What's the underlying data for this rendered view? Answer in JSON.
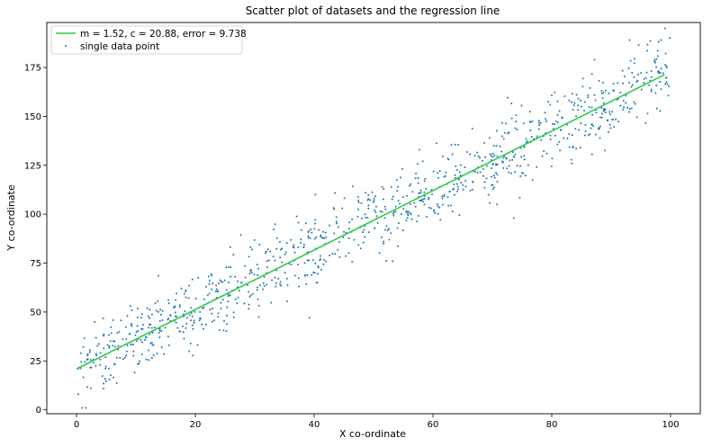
{
  "chart_data": {
    "type": "scatter",
    "title": "Scatter plot of datasets and the regression line",
    "xlabel": "X co-ordinate",
    "ylabel": "Y co-ordinate",
    "xlim": [
      -5,
      105
    ],
    "ylim": [
      -2,
      198
    ],
    "xticks": [
      0,
      20,
      40,
      60,
      80,
      100
    ],
    "yticks": [
      0,
      25,
      50,
      75,
      100,
      125,
      150,
      175
    ],
    "grid": false,
    "legend_position": "top-left",
    "colors": {
      "points": "#1f77b4",
      "line": "#2ecc40"
    },
    "series": [
      {
        "name": "m = 1.52, c = 20.88, error = 9.738",
        "kind": "line",
        "slope": 1.52,
        "intercept": 20.88,
        "x_range": [
          0,
          99
        ]
      },
      {
        "name": "single data point",
        "kind": "scatter",
        "trend_slope": 1.52,
        "trend_intercept": 20.88,
        "x_range": [
          0,
          100
        ],
        "count": 1000,
        "noise_sd": 9.738,
        "highlighted_points": [
          {
            "x": 0.3,
            "y": 8
          },
          {
            "x": 2.4,
            "y": 11
          },
          {
            "x": 39.2,
            "y": 47
          },
          {
            "x": 40.2,
            "y": 110
          },
          {
            "x": 53.2,
            "y": 76
          },
          {
            "x": 73.6,
            "y": 98
          },
          {
            "x": 87.2,
            "y": 179
          },
          {
            "x": 93.1,
            "y": 189
          }
        ]
      }
    ]
  }
}
